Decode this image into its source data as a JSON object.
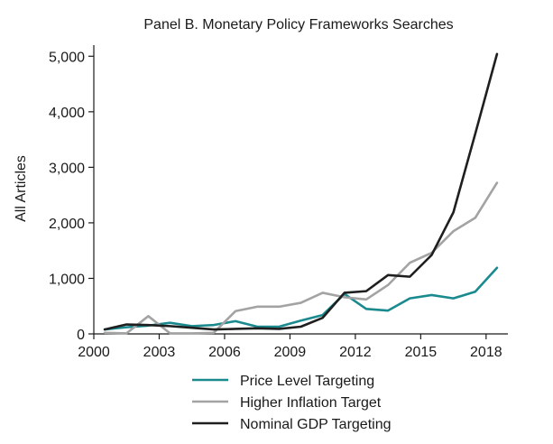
{
  "chart_data": {
    "type": "line",
    "title": "Panel B. Monetary Policy Frameworks Searches",
    "xlabel": "",
    "ylabel": "All Articles",
    "xlim": [
      2000,
      2019
    ],
    "ylim": [
      0,
      5200
    ],
    "x_ticks": [
      2000,
      2003,
      2006,
      2009,
      2012,
      2015,
      2018
    ],
    "x_tick_labels": [
      "2000",
      "2003",
      "2006",
      "2009",
      "2012",
      "2015",
      "2018"
    ],
    "y_ticks": [
      0,
      1000,
      2000,
      3000,
      4000,
      5000
    ],
    "y_tick_labels": [
      "0",
      "1,000",
      "2,000",
      "3,000",
      "4,000",
      "5,000"
    ],
    "grid": false,
    "legend": "bottom",
    "x": [
      2000.5,
      2001.5,
      2002.5,
      2003.5,
      2004.5,
      2005.5,
      2006.5,
      2007.5,
      2008.5,
      2009.5,
      2010.5,
      2011.5,
      2012.5,
      2013.5,
      2014.5,
      2015.5,
      2016.5,
      2017.5,
      2018.5
    ],
    "series": [
      {
        "name": "Price Level Targeting",
        "color": "#1a8a8f",
        "values": [
          80,
          120,
          150,
          200,
          140,
          160,
          230,
          130,
          130,
          240,
          340,
          720,
          450,
          420,
          640,
          700,
          640,
          760,
          1190
        ]
      },
      {
        "name": "Higher Inflation Target",
        "color": "#a3a3a3",
        "values": [
          20,
          10,
          320,
          10,
          10,
          20,
          410,
          490,
          490,
          560,
          740,
          660,
          620,
          880,
          1280,
          1460,
          1850,
          2090,
          2720
        ]
      },
      {
        "name": "Nominal GDP Targeting",
        "color": "#1f1f1f",
        "values": [
          80,
          170,
          160,
          140,
          110,
          80,
          90,
          100,
          90,
          130,
          290,
          740,
          770,
          1060,
          1030,
          1420,
          2190,
          3600,
          5040
        ]
      }
    ]
  }
}
